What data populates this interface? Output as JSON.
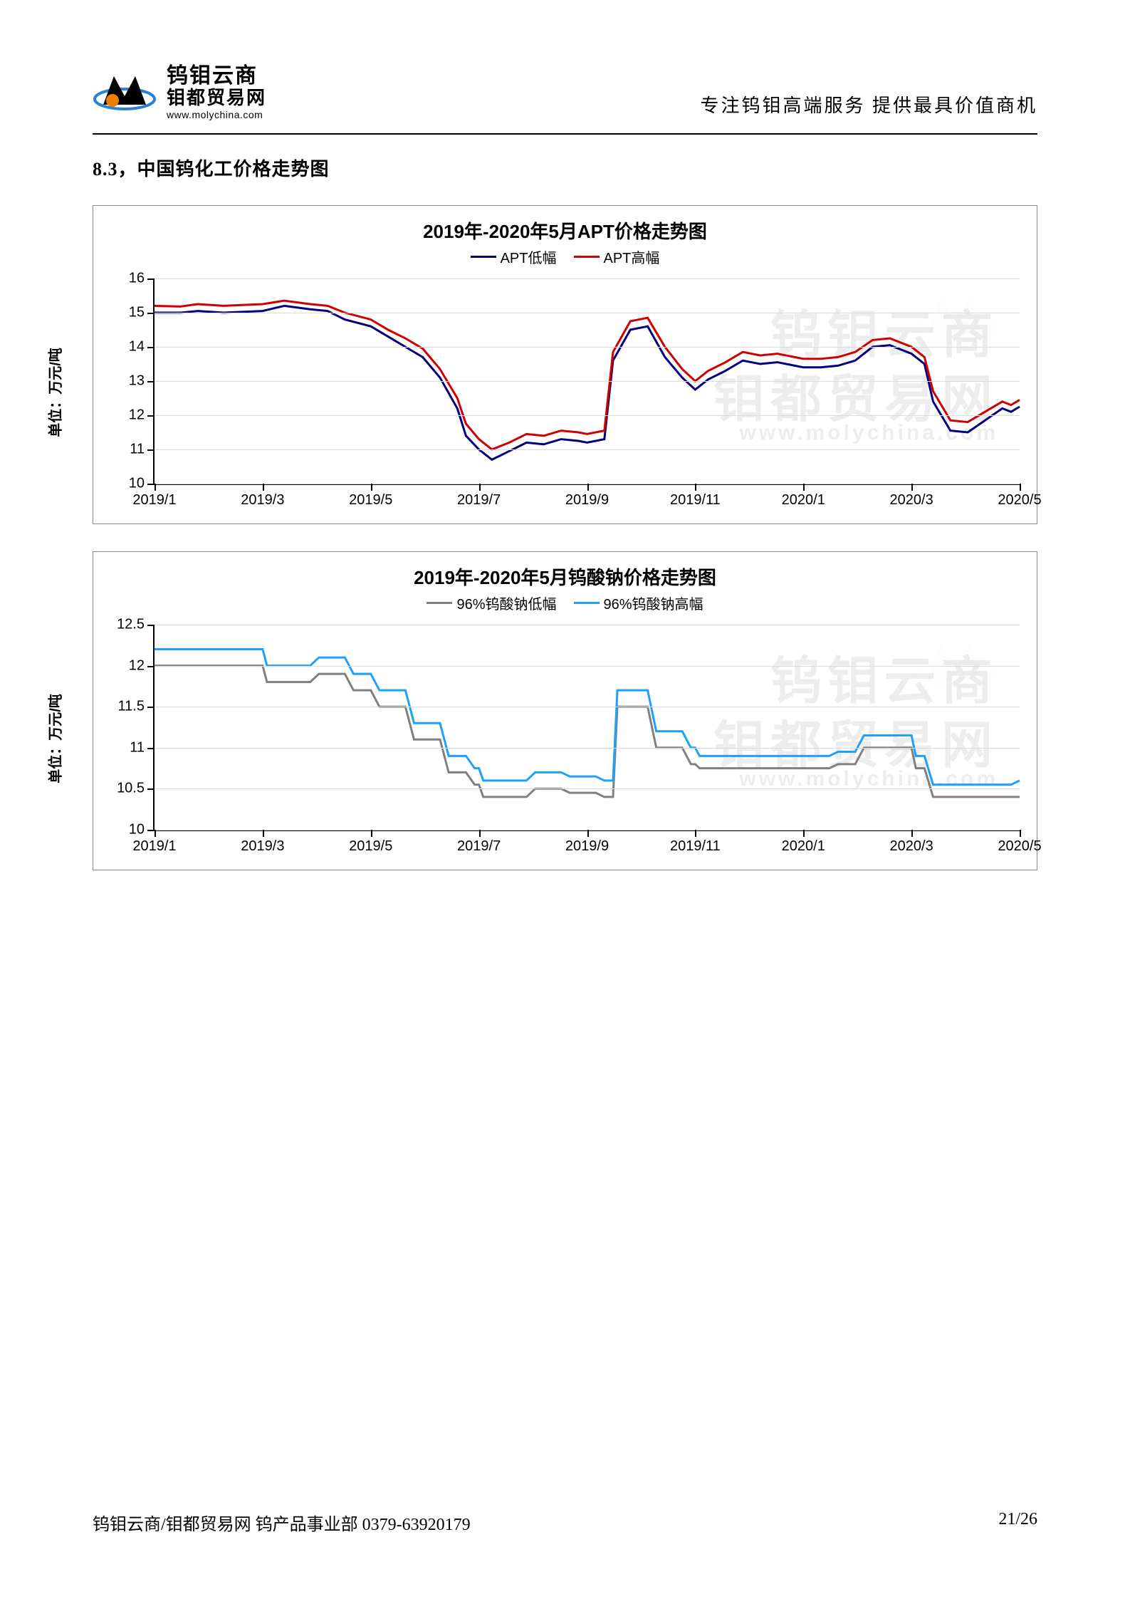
{
  "header": {
    "logo_line1": "钨钼云商",
    "logo_line2": "钼都贸易网",
    "logo_url": "www.molychina.com",
    "tagline": "专注钨钼高端服务  提供最具价值商机"
  },
  "section_title": "8.3，中国钨化工价格走势图",
  "colors": {
    "chart_border": "#888888",
    "grid": "#dcdcdc",
    "axis": "#000000",
    "series_low_1": "#000080",
    "series_high_1": "#d00000",
    "series_low_2": "#808080",
    "series_high_2": "#1ea0ff",
    "text": "#000000",
    "logo_orange": "#f07c00",
    "logo_blue": "#2b7fd6"
  },
  "x_axis": {
    "labels": [
      "2019/1",
      "2019/3",
      "2019/5",
      "2019/7",
      "2019/9",
      "2019/11",
      "2020/1",
      "2020/3",
      "2020/5"
    ],
    "positions": [
      0,
      12.5,
      25,
      37.5,
      50,
      62.5,
      75,
      87.5,
      100
    ]
  },
  "chart1": {
    "title": "2019年-2020年5月APT价格走势图",
    "y_label": "单位：万元/吨",
    "legend_low": "APT低幅",
    "legend_high": "APT高幅",
    "ylim": [
      10,
      16
    ],
    "yticks": [
      10,
      11,
      12,
      13,
      14,
      15,
      16
    ],
    "series_low": {
      "color": "#000080",
      "data": [
        [
          0,
          15.0
        ],
        [
          3,
          15.0
        ],
        [
          5,
          15.05
        ],
        [
          8,
          15.0
        ],
        [
          12.5,
          15.05
        ],
        [
          15,
          15.2
        ],
        [
          18,
          15.1
        ],
        [
          20,
          15.05
        ],
        [
          22,
          14.8
        ],
        [
          25,
          14.6
        ],
        [
          27,
          14.3
        ],
        [
          29,
          14.0
        ],
        [
          31,
          13.7
        ],
        [
          33,
          13.1
        ],
        [
          35,
          12.2
        ],
        [
          36,
          11.4
        ],
        [
          37.5,
          11.0
        ],
        [
          39,
          10.7
        ],
        [
          41,
          10.95
        ],
        [
          43,
          11.2
        ],
        [
          45,
          11.15
        ],
        [
          47,
          11.3
        ],
        [
          49,
          11.25
        ],
        [
          50,
          11.2
        ],
        [
          52,
          11.3
        ],
        [
          53,
          13.6
        ],
        [
          55,
          14.5
        ],
        [
          57,
          14.6
        ],
        [
          59,
          13.7
        ],
        [
          61,
          13.1
        ],
        [
          62.5,
          12.75
        ],
        [
          64,
          13.05
        ],
        [
          66,
          13.3
        ],
        [
          68,
          13.6
        ],
        [
          70,
          13.5
        ],
        [
          72,
          13.55
        ],
        [
          74,
          13.45
        ],
        [
          75,
          13.4
        ],
        [
          77,
          13.4
        ],
        [
          79,
          13.45
        ],
        [
          81,
          13.6
        ],
        [
          83,
          14.0
        ],
        [
          85,
          14.05
        ],
        [
          87.5,
          13.8
        ],
        [
          89,
          13.5
        ],
        [
          90,
          12.4
        ],
        [
          92,
          11.55
        ],
        [
          94,
          11.5
        ],
        [
          96,
          11.85
        ],
        [
          98,
          12.2
        ],
        [
          99,
          12.1
        ],
        [
          100,
          12.25
        ]
      ]
    },
    "series_high": {
      "color": "#d00000",
      "data": [
        [
          0,
          15.2
        ],
        [
          3,
          15.18
        ],
        [
          5,
          15.25
        ],
        [
          8,
          15.2
        ],
        [
          12.5,
          15.25
        ],
        [
          15,
          15.35
        ],
        [
          18,
          15.25
        ],
        [
          20,
          15.2
        ],
        [
          22,
          15.0
        ],
        [
          25,
          14.8
        ],
        [
          27,
          14.5
        ],
        [
          29,
          14.25
        ],
        [
          31,
          13.95
        ],
        [
          33,
          13.35
        ],
        [
          35,
          12.5
        ],
        [
          36,
          11.75
        ],
        [
          37.5,
          11.3
        ],
        [
          39,
          11.0
        ],
        [
          41,
          11.2
        ],
        [
          43,
          11.45
        ],
        [
          45,
          11.4
        ],
        [
          47,
          11.55
        ],
        [
          49,
          11.5
        ],
        [
          50,
          11.45
        ],
        [
          52,
          11.55
        ],
        [
          53,
          13.85
        ],
        [
          55,
          14.75
        ],
        [
          57,
          14.85
        ],
        [
          59,
          14.0
        ],
        [
          61,
          13.35
        ],
        [
          62.5,
          13.0
        ],
        [
          64,
          13.3
        ],
        [
          66,
          13.55
        ],
        [
          68,
          13.85
        ],
        [
          70,
          13.75
        ],
        [
          72,
          13.8
        ],
        [
          74,
          13.7
        ],
        [
          75,
          13.65
        ],
        [
          77,
          13.65
        ],
        [
          79,
          13.7
        ],
        [
          81,
          13.85
        ],
        [
          83,
          14.2
        ],
        [
          85,
          14.25
        ],
        [
          87.5,
          14.0
        ],
        [
          89,
          13.7
        ],
        [
          90,
          12.7
        ],
        [
          92,
          11.85
        ],
        [
          94,
          11.8
        ],
        [
          96,
          12.1
        ],
        [
          98,
          12.4
        ],
        [
          99,
          12.3
        ],
        [
          100,
          12.45
        ]
      ]
    }
  },
  "chart2": {
    "title": "2019年-2020年5月钨酸钠价格走势图",
    "y_label": "单位：万元/吨",
    "legend_low": "96%钨酸钠低幅",
    "legend_high": "96%钨酸钠高幅",
    "ylim": [
      10,
      12.5
    ],
    "yticks": [
      10,
      10.5,
      11,
      11.5,
      12,
      12.5
    ],
    "series_low": {
      "color": "#808080",
      "data": [
        [
          0,
          12.0
        ],
        [
          12.5,
          12.0
        ],
        [
          13,
          11.8
        ],
        [
          18,
          11.8
        ],
        [
          19,
          11.9
        ],
        [
          22,
          11.9
        ],
        [
          23,
          11.7
        ],
        [
          25,
          11.7
        ],
        [
          26,
          11.5
        ],
        [
          29,
          11.5
        ],
        [
          30,
          11.1
        ],
        [
          33,
          11.1
        ],
        [
          34,
          10.7
        ],
        [
          36,
          10.7
        ],
        [
          37,
          10.55
        ],
        [
          37.5,
          10.55
        ],
        [
          38,
          10.4
        ],
        [
          43,
          10.4
        ],
        [
          44,
          10.5
        ],
        [
          47,
          10.5
        ],
        [
          48,
          10.45
        ],
        [
          51,
          10.45
        ],
        [
          52,
          10.4
        ],
        [
          53,
          10.4
        ],
        [
          53.5,
          11.5
        ],
        [
          57,
          11.5
        ],
        [
          58,
          11.0
        ],
        [
          61,
          11.0
        ],
        [
          62,
          10.8
        ],
        [
          62.5,
          10.8
        ],
        [
          63,
          10.75
        ],
        [
          78,
          10.75
        ],
        [
          79,
          10.8
        ],
        [
          81,
          10.8
        ],
        [
          82,
          11.0
        ],
        [
          87.5,
          11.0
        ],
        [
          88,
          10.75
        ],
        [
          89,
          10.75
        ],
        [
          90,
          10.4
        ],
        [
          100,
          10.4
        ]
      ]
    },
    "series_high": {
      "color": "#1ea0ff",
      "data": [
        [
          0,
          12.2
        ],
        [
          12.5,
          12.2
        ],
        [
          13,
          12.0
        ],
        [
          18,
          12.0
        ],
        [
          19,
          12.1
        ],
        [
          22,
          12.1
        ],
        [
          23,
          11.9
        ],
        [
          25,
          11.9
        ],
        [
          26,
          11.7
        ],
        [
          29,
          11.7
        ],
        [
          30,
          11.3
        ],
        [
          33,
          11.3
        ],
        [
          34,
          10.9
        ],
        [
          36,
          10.9
        ],
        [
          37,
          10.75
        ],
        [
          37.5,
          10.75
        ],
        [
          38,
          10.6
        ],
        [
          43,
          10.6
        ],
        [
          44,
          10.7
        ],
        [
          47,
          10.7
        ],
        [
          48,
          10.65
        ],
        [
          51,
          10.65
        ],
        [
          52,
          10.6
        ],
        [
          53,
          10.6
        ],
        [
          53.5,
          11.7
        ],
        [
          57,
          11.7
        ],
        [
          58,
          11.2
        ],
        [
          61,
          11.2
        ],
        [
          62,
          11.0
        ],
        [
          62.5,
          11.0
        ],
        [
          63,
          10.9
        ],
        [
          78,
          10.9
        ],
        [
          79,
          10.95
        ],
        [
          81,
          10.95
        ],
        [
          82,
          11.15
        ],
        [
          87.5,
          11.15
        ],
        [
          88,
          10.9
        ],
        [
          89,
          10.9
        ],
        [
          90,
          10.55
        ],
        [
          99,
          10.55
        ],
        [
          100,
          10.6
        ]
      ]
    }
  },
  "watermark": {
    "text1": "钨钼云商",
    "text2": "钼都贸易网",
    "url": "www.molychina.com"
  },
  "footer": {
    "left": "钨钼云商/钼都贸易网 钨产品事业部 0379-63920179",
    "page": "21",
    "total": "26"
  }
}
